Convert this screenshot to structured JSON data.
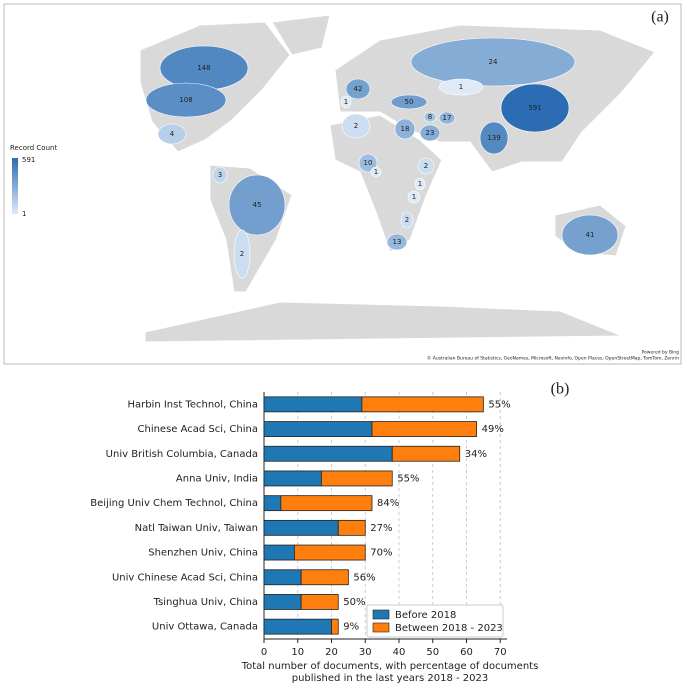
{
  "chart_data": [
    {
      "type": "map",
      "panel_label": "(a)",
      "legend_title": "Record Count",
      "legend_max": 591,
      "legend_min": 1,
      "log_scale": true,
      "colors": [
        "#deebf7",
        "#2b6cb3"
      ],
      "values": [
        591,
        148,
        108,
        24,
        139,
        50,
        42,
        45,
        41,
        23,
        18,
        17,
        13,
        10,
        8,
        4,
        3,
        2,
        2,
        2,
        2,
        1,
        1,
        1,
        1,
        1
      ],
      "attribution": [
        "Powered by Bing",
        "© Australian Bureau of Statistics, GeoNames, Microsoft, Navinfo, Open Places, OpenStreetMap, TomTom, Zenrin"
      ]
    },
    {
      "type": "stacked_barh",
      "panel_label": "(b)",
      "categories": [
        "Harbin Inst Technol, China",
        "Chinese Acad Sci, China",
        "Univ British Columbia, Canada",
        "Anna Univ, India",
        "Beijing Univ Chem Technol, China",
        "Natl Taiwan Univ, Taiwan",
        "Shenzhen Univ, China",
        "Univ Chinese Acad Sci, China",
        "Tsinghua Univ, China",
        "Univ Ottawa, Canada"
      ],
      "series": [
        {
          "name": "Before 2018",
          "color": "#1f77b4",
          "values": [
            29,
            32,
            38,
            17,
            5,
            22,
            9,
            11,
            11,
            20
          ]
        },
        {
          "name": "Between 2018 - 2023",
          "color": "#ff7f0e",
          "values": [
            36,
            31,
            20,
            21,
            27,
            8,
            21,
            14,
            11,
            2
          ]
        }
      ],
      "bar_labels": [
        "55%",
        "49%",
        "34%",
        "55%",
        "84%",
        "27%",
        "70%",
        "56%",
        "50%",
        "9%"
      ],
      "xlabel": [
        "Total number of documents, with percentage of documents",
        "published in the last years 2018 - 2023"
      ],
      "xlim": [
        0,
        72
      ],
      "xticks": [
        0,
        10,
        20,
        30,
        40,
        50,
        60,
        70
      ],
      "grid": true,
      "legend": "lower right"
    }
  ]
}
